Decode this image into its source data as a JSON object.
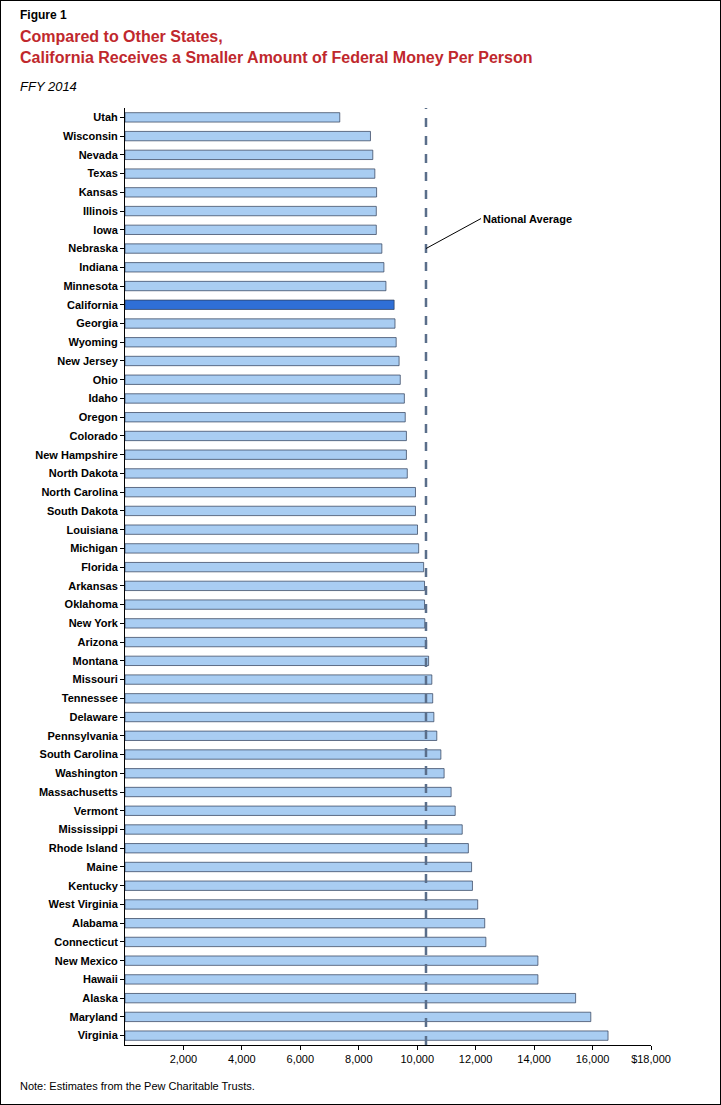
{
  "chart_data": {
    "type": "bar",
    "orientation": "horizontal",
    "figure_label": "Figure 1",
    "title": [
      "Compared to Other States,",
      "California Receives a Smaller Amount of Federal Money Per Person"
    ],
    "subtitle": "FFY 2014",
    "note": "Note: Estimates from the Pew Charitable Trusts.",
    "categories": [
      "Utah",
      "Wisconsin",
      "Nevada",
      "Texas",
      "Kansas",
      "Illinois",
      "Iowa",
      "Nebraska",
      "Indiana",
      "Minnesota",
      "California",
      "Georgia",
      "Wyoming",
      "New Jersey",
      "Ohio",
      "Idaho",
      "Oregon",
      "Colorado",
      "New Hampshire",
      "North Dakota",
      "North Carolina",
      "South Dakota",
      "Louisiana",
      "Michigan",
      "Florida",
      "Arkansas",
      "Oklahoma",
      "New York",
      "Arizona",
      "Montana",
      "Missouri",
      "Tennessee",
      "Delaware",
      "Pennsylvania",
      "South Carolina",
      "Washington",
      "Massachusetts",
      "Vermont",
      "Mississippi",
      "Rhode Island",
      "Maine",
      "Kentucky",
      "West Virginia",
      "Alabama",
      "Connecticut",
      "New Mexico",
      "Hawaii",
      "Alaska",
      "Maryland",
      "Virginia"
    ],
    "values": [
      7350,
      8400,
      8480,
      8550,
      8610,
      8600,
      8600,
      8790,
      8860,
      8930,
      9210,
      9240,
      9280,
      9380,
      9420,
      9560,
      9590,
      9630,
      9630,
      9660,
      9940,
      9940,
      10010,
      10050,
      10220,
      10250,
      10250,
      10260,
      10320,
      10390,
      10500,
      10530,
      10570,
      10670,
      10810,
      10920,
      11160,
      11300,
      11540,
      11750,
      11860,
      11890,
      12070,
      12310,
      12350,
      14130,
      14130,
      15420,
      15940,
      16530
    ],
    "colors": [
      "#a9cdf2",
      "#a9cdf2",
      "#a9cdf2",
      "#a9cdf2",
      "#a9cdf2",
      "#a9cdf2",
      "#a9cdf2",
      "#a9cdf2",
      "#a9cdf2",
      "#a9cdf2",
      "#2f6fd6",
      "#a9cdf2",
      "#a9cdf2",
      "#a9cdf2",
      "#a9cdf2",
      "#a9cdf2",
      "#a9cdf2",
      "#a9cdf2",
      "#a9cdf2",
      "#a9cdf2",
      "#a9cdf2",
      "#a9cdf2",
      "#a9cdf2",
      "#a9cdf2",
      "#a9cdf2",
      "#a9cdf2",
      "#a9cdf2",
      "#a9cdf2",
      "#a9cdf2",
      "#a9cdf2",
      "#a9cdf2",
      "#a9cdf2",
      "#a9cdf2",
      "#a9cdf2",
      "#a9cdf2",
      "#a9cdf2",
      "#a9cdf2",
      "#a9cdf2",
      "#a9cdf2",
      "#a9cdf2",
      "#a9cdf2",
      "#a9cdf2",
      "#a9cdf2",
      "#a9cdf2",
      "#a9cdf2",
      "#a9cdf2",
      "#a9cdf2",
      "#a9cdf2",
      "#a9cdf2",
      "#a9cdf2"
    ],
    "xlim": [
      0,
      18000
    ],
    "xticks": [
      {
        "value": 2000,
        "label": "2,000"
      },
      {
        "value": 4000,
        "label": "4,000"
      },
      {
        "value": 6000,
        "label": "6,000"
      },
      {
        "value": 8000,
        "label": "8,000"
      },
      {
        "value": 10000,
        "label": "10,000"
      },
      {
        "value": 12000,
        "label": "12,000"
      },
      {
        "value": 14000,
        "label": "14,000"
      },
      {
        "value": 16000,
        "label": "16,000"
      },
      {
        "value": 18000,
        "label": "$18,000"
      }
    ],
    "reference_line": {
      "value": 10300,
      "label": "National Average",
      "at_category": "Nebraska",
      "line_style": "dashed",
      "color": "#5a6e8a"
    },
    "grid": false
  }
}
